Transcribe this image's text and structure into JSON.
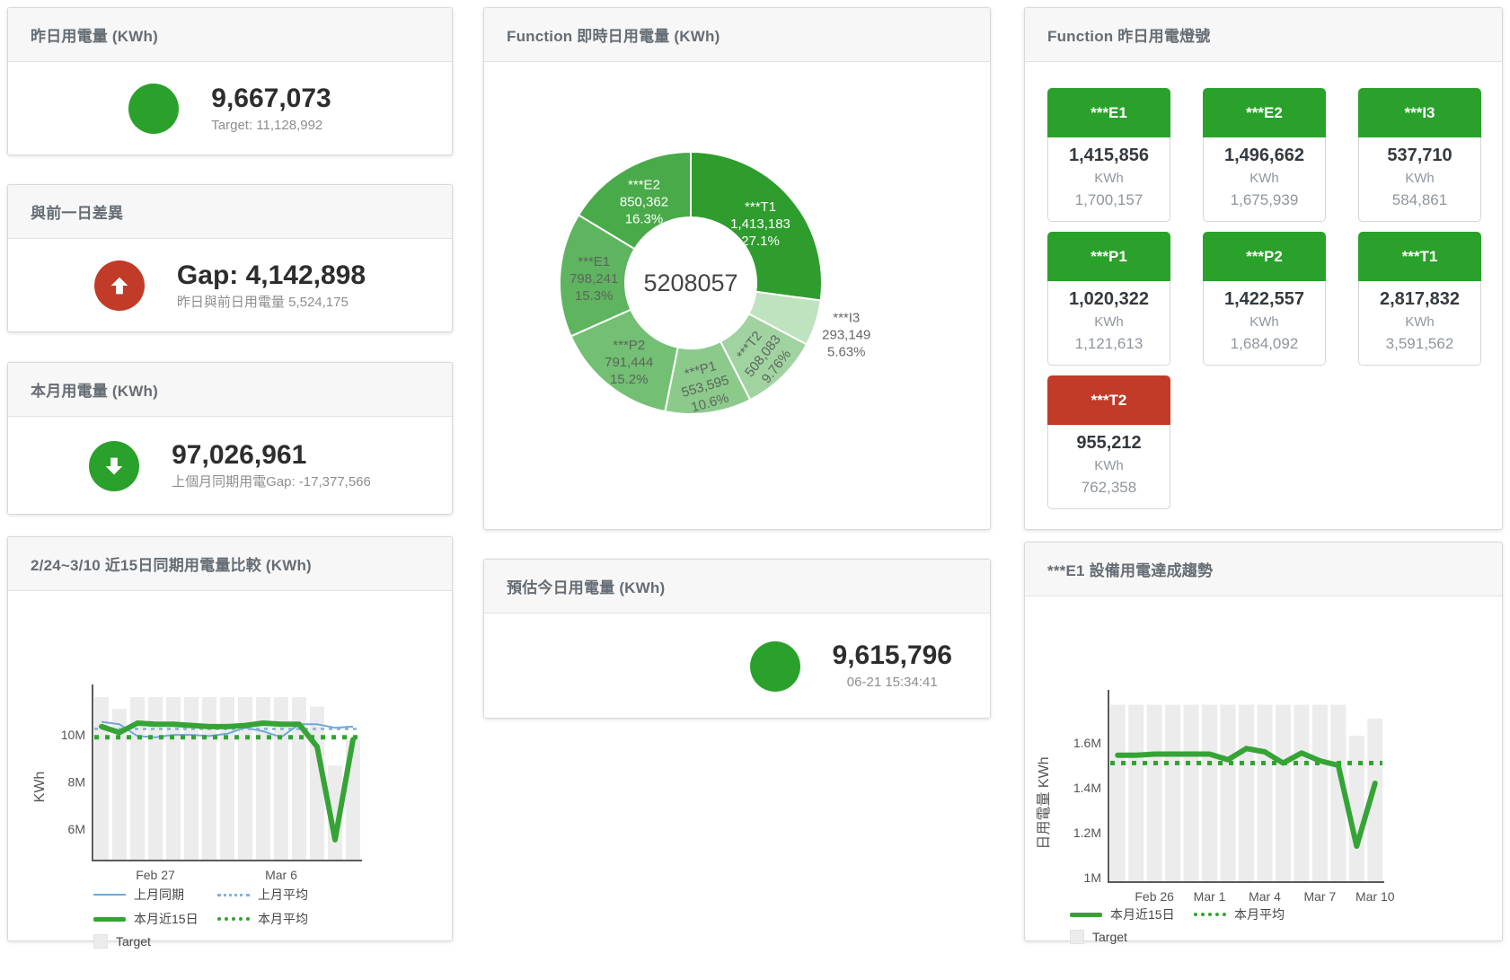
{
  "colors": {
    "green": "#2aa12a",
    "red": "#c23b28",
    "line_green": "#35a435",
    "avg_green": "#2fa52f",
    "line_blue": "#6fa8d6",
    "avg_blue": "#7fb2dd",
    "target_bar_gray": "#ececec",
    "donut_slices": [
      "#2e9d2e",
      "#bfe2bf",
      "#a0d3a0",
      "#8cca8c",
      "#73bf73",
      "#5fb45f",
      "#49aa49"
    ]
  },
  "panels": {
    "yesterday": {
      "title": "昨日用電量 (KWh)",
      "value": "9,667,073",
      "subtitle": "Target: 11,128,992"
    },
    "diff": {
      "title": "與前一日差異",
      "value": "Gap: 4,142,898",
      "subtitle": "昨日與前日用電量 5,524,175"
    },
    "month": {
      "title": "本月用電量 (KWh)",
      "value": "97,026,961",
      "subtitle": "上個月同期用電Gap: -17,377,566"
    },
    "forecast": {
      "title": "預估今日用電量 (KWh)",
      "value": "9,615,796",
      "subtitle": "06-21 15:34:41"
    },
    "donut": {
      "title": "Function 即時日用電量 (KWh)",
      "center_total": "5208057"
    },
    "lights": {
      "title": "Function 昨日用電燈號",
      "unit": "KWh",
      "tiles": [
        {
          "name": "***E1",
          "value": "1,415,856",
          "target": "1,700,157",
          "status": "green"
        },
        {
          "name": "***E2",
          "value": "1,496,662",
          "target": "1,675,939",
          "status": "green"
        },
        {
          "name": "***I3",
          "value": "537,710",
          "target": "584,861",
          "status": "green"
        },
        {
          "name": "***P1",
          "value": "1,020,322",
          "target": "1,121,613",
          "status": "green"
        },
        {
          "name": "***P2",
          "value": "1,422,557",
          "target": "1,684,092",
          "status": "green"
        },
        {
          "name": "***T1",
          "value": "2,817,832",
          "target": "3,591,562",
          "status": "green"
        },
        {
          "name": "***T2",
          "value": "955,212",
          "target": "762,358",
          "status": "red"
        }
      ]
    },
    "compare": {
      "title": "2/24~3/10 近15日同期用電量比較 (KWh)",
      "ylabel": "KWh",
      "legend": [
        {
          "label": "上月同期",
          "style": "blue-line"
        },
        {
          "label": "上月平均",
          "style": "blue-dash"
        },
        {
          "label": "本月近15日",
          "style": "green-thick"
        },
        {
          "label": "本月平均",
          "style": "green-dash"
        },
        {
          "label": "Target",
          "style": "box"
        }
      ]
    },
    "trend": {
      "title": "***E1 設備用電達成趨勢",
      "ylabel": "日用電量 KWh",
      "legend": [
        {
          "label": "本月近15日",
          "style": "green-thick"
        },
        {
          "label": "本月平均",
          "style": "green-dash"
        },
        {
          "label": "Target",
          "style": "box"
        }
      ]
    }
  },
  "chart_data": [
    {
      "id": "realtime_donut",
      "type": "pie",
      "title": "Function 即時日用電量 (KWh)",
      "center_total": "5208057",
      "slices": [
        {
          "name": "***T1",
          "value": 1413183,
          "pct": "27.1%"
        },
        {
          "name": "***I3",
          "value": 293149,
          "pct": "5.63%"
        },
        {
          "name": "***T2",
          "value": 508083,
          "pct": "9.76%"
        },
        {
          "name": "***P1",
          "value": 553595,
          "pct": "10.6%"
        },
        {
          "name": "***P2",
          "value": 791444,
          "pct": "15.2%"
        },
        {
          "name": "***E1",
          "value": 798241,
          "pct": "15.3%"
        },
        {
          "name": "***E2",
          "value": 850362,
          "pct": "16.3%"
        }
      ]
    },
    {
      "id": "compare15",
      "type": "bar+line",
      "title": "2/24~3/10 近15日同期用電量比較 (KWh)",
      "x_range": "Feb 24 – Mar 10, 15 days",
      "xticks": [
        {
          "i": 3,
          "label": "Feb 27"
        },
        {
          "i": 10,
          "label": "Mar 6"
        }
      ],
      "yticks": [
        {
          "v": 6,
          "label": "6M"
        },
        {
          "v": 8,
          "label": "8M"
        },
        {
          "v": 10,
          "label": "10M"
        }
      ],
      "ylabel": "KWh",
      "units": "M KWh",
      "ylim": [
        4.67,
        11.75
      ],
      "target_bars_M": [
        11.6,
        11.1,
        11.6,
        11.6,
        11.6,
        11.6,
        11.6,
        11.6,
        11.6,
        11.6,
        11.6,
        11.6,
        11.2,
        8.7,
        9.8
      ],
      "last_month_same_period_M": [
        10.55,
        10.45,
        9.95,
        9.9,
        10.0,
        10.0,
        9.95,
        10.05,
        10.3,
        10.15,
        9.9,
        10.45,
        10.45,
        10.3,
        10.35
      ],
      "last_month_avg_M": 10.25,
      "this_month_15d_M": [
        10.35,
        10.1,
        10.5,
        10.45,
        10.45,
        10.4,
        10.35,
        10.35,
        10.4,
        10.5,
        10.45,
        10.45,
        9.5,
        5.55,
        9.8
      ],
      "this_month_avg_M": 9.9
    },
    {
      "id": "e1_trend",
      "type": "bar+line",
      "title": "***E1 設備用電達成趨勢",
      "x_range": "Feb 24 – Mar 10, 15 days",
      "xticks": [
        {
          "i": 2,
          "label": "Feb 26"
        },
        {
          "i": 5,
          "label": "Mar 1"
        },
        {
          "i": 8,
          "label": "Mar 4"
        },
        {
          "i": 11,
          "label": "Mar 7"
        },
        {
          "i": 14,
          "label": "Mar 10"
        }
      ],
      "yticks": [
        {
          "v": 1.0,
          "label": "1M"
        },
        {
          "v": 1.2,
          "label": "1.2M"
        },
        {
          "v": 1.4,
          "label": "1.4M"
        },
        {
          "v": 1.6,
          "label": "1.6M"
        }
      ],
      "ylabel": "日用電量 KWh",
      "units": "M KWh",
      "ylim": [
        0.98,
        1.8
      ],
      "target_bars_M": [
        1.77,
        1.77,
        1.77,
        1.77,
        1.77,
        1.77,
        1.77,
        1.77,
        1.77,
        1.77,
        1.77,
        1.77,
        1.77,
        1.632,
        1.708
      ],
      "daily_M": [
        1.545,
        1.545,
        1.55,
        1.55,
        1.55,
        1.55,
        1.525,
        1.575,
        1.56,
        1.51,
        1.555,
        1.52,
        1.5,
        1.14,
        1.42
      ],
      "month_avg_M": 1.51
    }
  ]
}
